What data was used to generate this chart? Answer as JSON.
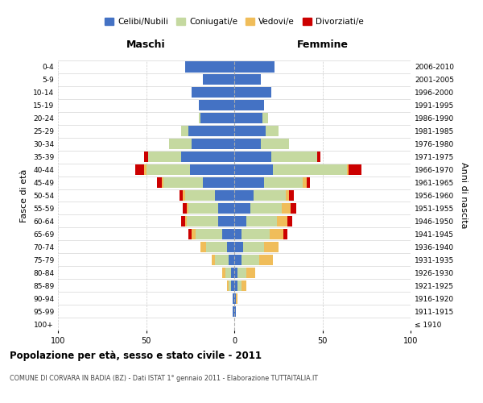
{
  "age_groups": [
    "100+",
    "95-99",
    "90-94",
    "85-89",
    "80-84",
    "75-79",
    "70-74",
    "65-69",
    "60-64",
    "55-59",
    "50-54",
    "45-49",
    "40-44",
    "35-39",
    "30-34",
    "25-29",
    "20-24",
    "15-19",
    "10-14",
    "5-9",
    "0-4"
  ],
  "birth_years": [
    "≤ 1910",
    "1911-1915",
    "1916-1920",
    "1921-1925",
    "1926-1930",
    "1931-1935",
    "1936-1940",
    "1941-1945",
    "1946-1950",
    "1951-1955",
    "1956-1960",
    "1961-1965",
    "1966-1970",
    "1971-1975",
    "1976-1980",
    "1981-1985",
    "1986-1990",
    "1991-1995",
    "1996-2000",
    "2001-2005",
    "2006-2010"
  ],
  "male_celibe": [
    0,
    1,
    1,
    2,
    2,
    3,
    4,
    7,
    9,
    9,
    11,
    18,
    25,
    30,
    24,
    26,
    19,
    20,
    24,
    18,
    28
  ],
  "male_coniugato": [
    0,
    0,
    0,
    1,
    3,
    8,
    12,
    15,
    18,
    17,
    17,
    22,
    25,
    19,
    13,
    4,
    1,
    0,
    0,
    0,
    0
  ],
  "male_vedovo": [
    0,
    0,
    0,
    1,
    2,
    2,
    3,
    2,
    1,
    1,
    1,
    1,
    1,
    0,
    0,
    0,
    0,
    0,
    0,
    0,
    0
  ],
  "male_divorziato": [
    0,
    0,
    0,
    0,
    0,
    0,
    0,
    2,
    2,
    2,
    2,
    3,
    5,
    2,
    0,
    0,
    0,
    0,
    0,
    0,
    0
  ],
  "female_celibe": [
    0,
    1,
    1,
    2,
    2,
    4,
    5,
    4,
    7,
    9,
    11,
    17,
    22,
    21,
    15,
    18,
    16,
    17,
    21,
    15,
    23
  ],
  "female_coniugato": [
    0,
    0,
    0,
    2,
    5,
    10,
    12,
    16,
    17,
    18,
    18,
    22,
    42,
    26,
    16,
    7,
    3,
    0,
    0,
    0,
    0
  ],
  "female_vedovo": [
    0,
    0,
    1,
    3,
    5,
    8,
    8,
    8,
    6,
    5,
    2,
    2,
    1,
    0,
    0,
    0,
    0,
    0,
    0,
    0,
    0
  ],
  "female_divorziato": [
    0,
    0,
    0,
    0,
    0,
    0,
    0,
    2,
    3,
    3,
    3,
    2,
    7,
    2,
    0,
    0,
    0,
    0,
    0,
    0,
    0
  ],
  "colors": {
    "celibe": "#4472c4",
    "coniugato": "#c5d9a0",
    "vedovo": "#f0bd5a",
    "divorziato": "#cc0000"
  },
  "xlim": [
    -100,
    100
  ],
  "title": "Popolazione per età, sesso e stato civile - 2011",
  "subtitle": "COMUNE DI CORVARA IN BADIA (BZ) - Dati ISTAT 1° gennaio 2011 - Elaborazione TUTTAITALIA.IT",
  "ylabel": "Fasce di età",
  "ylabel_right": "Anni di nascita",
  "maschi_label": "Maschi",
  "femmine_label": "Femmine",
  "legend_labels": [
    "Celibi/Nubili",
    "Coniugati/e",
    "Vedovi/e",
    "Divorziati/e"
  ],
  "background_color": "#ffffff",
  "bar_height": 0.82,
  "grid_color": "#cccccc",
  "center_line_color": "#aaaaaa"
}
